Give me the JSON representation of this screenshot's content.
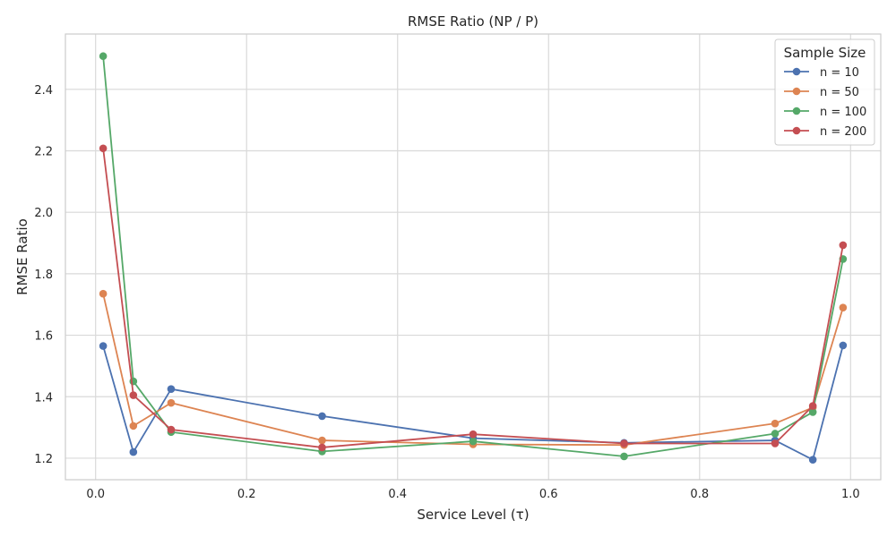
{
  "chart_data": {
    "type": "line",
    "title": "RMSE Ratio (NP / P)",
    "xlabel": "Service Level (τ)",
    "ylabel": "RMSE Ratio",
    "xlim": [
      -0.04,
      1.04
    ],
    "ylim": [
      1.13,
      2.58
    ],
    "xticks": [
      0.0,
      0.2,
      0.4,
      0.6,
      0.8,
      1.0
    ],
    "xtick_labels": [
      "0.0",
      "0.2",
      "0.4",
      "0.6",
      "0.8",
      "1.0"
    ],
    "yticks": [
      1.2,
      1.4,
      1.6,
      1.8,
      2.0,
      2.2,
      2.4
    ],
    "ytick_labels": [
      "1.2",
      "1.4",
      "1.6",
      "1.8",
      "2.0",
      "2.2",
      "2.4"
    ],
    "grid": true,
    "legend": {
      "title": "Sample Size",
      "position": "top-right"
    },
    "x": [
      0.01,
      0.05,
      0.1,
      0.3,
      0.5,
      0.7,
      0.9,
      0.95,
      0.99
    ],
    "series": [
      {
        "name": "n = 10",
        "color": "#4c72b0",
        "values": [
          1.565,
          1.22,
          1.425,
          1.337,
          1.265,
          1.25,
          1.258,
          1.195,
          1.567
        ]
      },
      {
        "name": "n = 50",
        "color": "#dd8452",
        "values": [
          1.735,
          1.305,
          1.38,
          1.258,
          1.245,
          1.243,
          1.313,
          1.365,
          1.69
        ]
      },
      {
        "name": "n = 100",
        "color": "#55a868",
        "values": [
          2.508,
          1.45,
          1.285,
          1.222,
          1.255,
          1.206,
          1.28,
          1.35,
          1.848
        ]
      },
      {
        "name": "n = 200",
        "color": "#c44e52",
        "values": [
          2.208,
          1.405,
          1.293,
          1.235,
          1.278,
          1.248,
          1.248,
          1.37,
          1.893
        ]
      }
    ]
  }
}
